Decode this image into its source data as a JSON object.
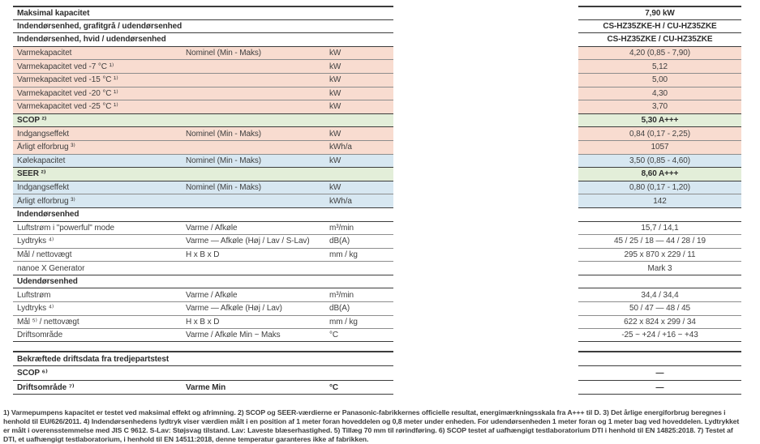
{
  "colors": {
    "heating_row": "#f8dcd0",
    "cooling_row": "#d7e7f1",
    "rating_row": "#e3eed9",
    "row_border": "#8d8d8d",
    "section_border": "#3c3c3c",
    "text": "#404040"
  },
  "spec_table": {
    "rows": [
      {
        "label": "Maksimal kapacitet",
        "desc": "",
        "unit": "",
        "value": "7,90 kW"
      },
      {
        "label": "Indendørsenhed, grafitgrå / udendørsenhed",
        "desc": "",
        "unit": "",
        "value": "CS-HZ35ZKE-H / CU-HZ35ZKE"
      },
      {
        "label": "Indendørsenhed, hvid / udendørsenhed",
        "desc": "",
        "unit": "",
        "value": "CS-HZ35ZKE / CU-HZ35ZKE"
      },
      {
        "label": "Varmekapacitet",
        "desc": "Nominel (Min - Maks)",
        "unit": "kW",
        "value": "4,20 (0,85 - 7,90)"
      },
      {
        "label": "Varmekapacitet ved -7 °C ¹⁾",
        "desc": "",
        "unit": "kW",
        "value": "5,12"
      },
      {
        "label": "Varmekapacitet ved -15 °C ¹⁾",
        "desc": "",
        "unit": "kW",
        "value": "5,00"
      },
      {
        "label": "Varmekapacitet ved -20 °C ¹⁾",
        "desc": "",
        "unit": "kW",
        "value": "4,30"
      },
      {
        "label": "Varmekapacitet ved -25 °C ¹⁾",
        "desc": "",
        "unit": "kW",
        "value": "3,70"
      },
      {
        "label": "SCOP ²⁾",
        "desc": "",
        "unit": "",
        "value": "5,30 A+++"
      },
      {
        "label": "Indgangseffekt",
        "desc": "Nominel (Min - Maks)",
        "unit": "kW",
        "value": "0,84 (0,17 - 2,25)"
      },
      {
        "label": "Årligt elforbrug ³⁾",
        "desc": "",
        "unit": "kWh/a",
        "value": "1057"
      },
      {
        "label": "Kølekapacitet",
        "desc": "Nominel (Min - Maks)",
        "unit": "kW",
        "value": "3,50 (0,85 - 4,60)"
      },
      {
        "label": "SEER ²⁾",
        "desc": "",
        "unit": "",
        "value": "8,60 A+++"
      },
      {
        "label": "Indgangseffekt",
        "desc": "Nominel (Min - Maks)",
        "unit": "kW",
        "value": "0,80 (0,17 - 1,20)"
      },
      {
        "label": "Årligt elforbrug ³⁾",
        "desc": "",
        "unit": "kWh/a",
        "value": "142"
      },
      {
        "label": "Indendørsenhed",
        "desc": "",
        "unit": "",
        "value": ""
      },
      {
        "label": "Luftstrøm i \"powerful\" mode",
        "desc": "Varme / Afkøle",
        "unit": "m³/min",
        "value": "15,7 / 14,1"
      },
      {
        "label": "Lydtryks ⁴⁾",
        "desc": "Varme — Afkøle (Høj / Lav / S-Lav)",
        "unit": "dB(A)",
        "value": "45 / 25 / 18 — 44 / 28 / 19"
      },
      {
        "label": "Mål / nettovægt",
        "desc": "H x B x D",
        "unit": "mm / kg",
        "value": "295 x 870 x 229 / 11"
      },
      {
        "label": "nanoe X Generator",
        "desc": "",
        "unit": "",
        "value": "Mark 3"
      },
      {
        "label": "Udendørsenhed",
        "desc": "",
        "unit": "",
        "value": ""
      },
      {
        "label": "Luftstrøm",
        "desc": "Varme / Afkøle",
        "unit": "m³/min",
        "value": "34,4 / 34,4"
      },
      {
        "label": "Lydtryks ⁴⁾",
        "desc": "Varme — Afkøle (Høj / Lav)",
        "unit": "dB(A)",
        "value": "50 / 47 — 48 / 45"
      },
      {
        "label": "Mål ⁵⁾ / nettovægt",
        "desc": "H x B x D",
        "unit": "mm / kg",
        "value": "622 x 824 x 299 / 34"
      },
      {
        "label": "Driftsområde",
        "desc": "Varme / Afkøle Min ~ Maks",
        "unit": "°C",
        "value": "-25 ~ +24 / +16 ~ +43"
      }
    ]
  },
  "verified_table": {
    "rows": [
      {
        "label": "Bekræftede driftsdata fra tredjepartstest",
        "desc": "",
        "unit": "",
        "value": ""
      },
      {
        "label": "SCOP ⁶⁾",
        "desc": "",
        "unit": "",
        "value": "—"
      },
      {
        "label": "Driftsområde ⁷⁾",
        "desc": "Varme Min",
        "unit": "°C",
        "value": "—"
      }
    ]
  },
  "footnotes": {
    "text": "1) Varmepumpens kapacitet er testet ved maksimal effekt og afrimning. 2) SCOP og SEER-værdierne er Panasonic-fabrikkernes officielle resultat, energimærkningsskala fra A+++ til D. 3) Det årlige energiforbrug beregnes i henhold til EU/626/2011. 4) Indendørsenhedens lydtryk viser værdien målt i en position af 1 meter foran hoveddelen og 0,8 meter under enheden. For udendørsenheden 1 meter foran og 1 meter bag ved hoveddelen. Lydtrykket er målt i overensstemmelse med JIS C 9612. S-Lav: Støjsvag tilstand. Lav: Laveste blæserhastighed. 5) Tillæg 70 mm til rørindføring. 6) SCOP testet af uafhængigt testlaboratorium DTI i henhold til EN 14825:2018. 7) Testet af DTI, et uafhængigt testlaboratorium, i henhold til EN 14511:2018, denne temperatur garanteres ikke af fabrikken."
  }
}
